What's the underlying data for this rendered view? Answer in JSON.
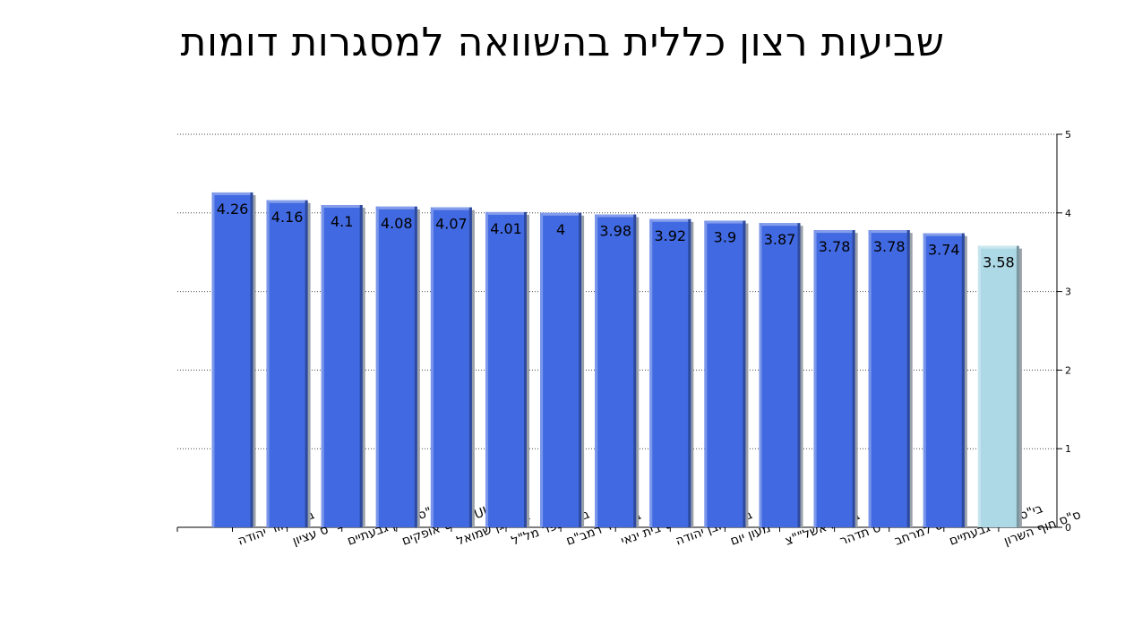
{
  "chart_data": {
    "type": "bar",
    "title": "שביעות רצון כללית בהשוואה למסגרות דומות",
    "xlabel": "",
    "ylabel": "",
    "categories": [
      "בי\"ס אור יהודה",
      "בי\"ס עציון",
      "בי\"ס תיכון גבעתיים",
      "NULLבי\"ס אופקים",
      "בי\"ס גן שמואל",
      "בי\"ס כפר מל\"ל",
      "בי\"ס יד רמב\"ם",
      "בי\"ס בית ינאי",
      "בי\"ס אבן יהודה",
      "מעון יום",
      "בי\"ס ראשל\"\"צ",
      "בי\"ס תדהר",
      "בי\"ס למרחב",
      "בי\"ס יסודי גבעתיים",
      "ס\"ס חוף השרון"
    ],
    "values": [
      4.26,
      4.16,
      4.1,
      4.08,
      4.07,
      4.01,
      4,
      3.98,
      3.92,
      3.9,
      3.87,
      3.78,
      3.78,
      3.74,
      3.58
    ],
    "value_labels": [
      "4.26",
      "4.16",
      "4.1",
      "4.08",
      "4.07",
      "4.01",
      "4",
      "3.98",
      "3.92",
      "3.9",
      "3.87",
      "3.78",
      "3.78",
      "3.74",
      "3.58"
    ],
    "ylim": [
      0,
      5
    ],
    "yticks": [
      "0",
      "1",
      "2",
      "3",
      "4",
      "5"
    ],
    "y_axis_side": "right",
    "grid": true,
    "bar_color": "#4169E1",
    "highlight_color": "#ADD8E6",
    "highlight_index": 14
  }
}
